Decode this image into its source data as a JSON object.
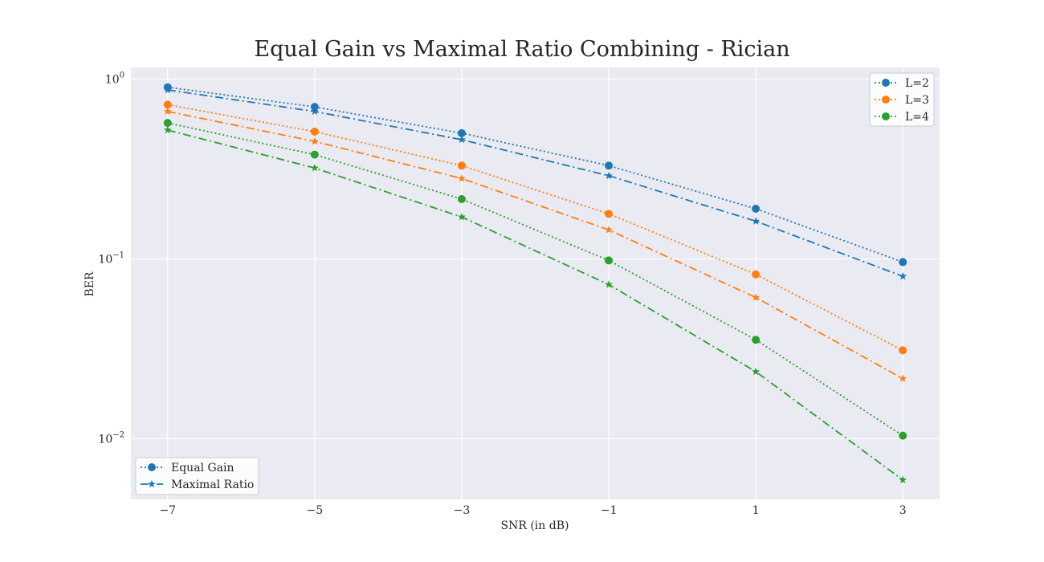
{
  "chart_data": {
    "type": "line",
    "title": "Equal Gain vs Maximal Ratio Combining - Rician",
    "xlabel": "SNR (in dB)",
    "ylabel": "BER",
    "yscale": "log",
    "xlim": [
      -7.5,
      3.5
    ],
    "ylim": [
      0.0046,
      1.16
    ],
    "grid": true,
    "x": [
      -7,
      -5,
      -3,
      -1,
      1,
      3
    ],
    "x_tick_labels": [
      "−7",
      "−5",
      "−3",
      "−1",
      "1",
      "3"
    ],
    "y_ticks": [
      {
        "value": 1,
        "base": "10",
        "exp": "0"
      },
      {
        "value": 0.1,
        "base": "10",
        "exp": "−1"
      },
      {
        "value": 0.01,
        "base": "10",
        "exp": "−2"
      }
    ],
    "colors": {
      "L=2": "#1f77b4",
      "L=3": "#ff7f0e",
      "L=4": "#2ca02c"
    },
    "series": [
      {
        "L": "L=2",
        "method": "Equal Gain",
        "color": "#1f77b4",
        "values": [
          0.9,
          0.7,
          0.5,
          0.33,
          0.19,
          0.096
        ]
      },
      {
        "L": "L=2",
        "method": "Maximal Ratio",
        "color": "#1f77b4",
        "values": [
          0.87,
          0.66,
          0.46,
          0.29,
          0.162,
          0.08
        ]
      },
      {
        "L": "L=3",
        "method": "Equal Gain",
        "color": "#ff7f0e",
        "values": [
          0.72,
          0.51,
          0.33,
          0.178,
          0.082,
          0.031
        ]
      },
      {
        "L": "L=3",
        "method": "Maximal Ratio",
        "color": "#ff7f0e",
        "values": [
          0.66,
          0.45,
          0.28,
          0.145,
          0.061,
          0.0216
        ]
      },
      {
        "L": "L=4",
        "method": "Equal Gain",
        "color": "#2ca02c",
        "values": [
          0.57,
          0.38,
          0.215,
          0.098,
          0.0355,
          0.0104
        ]
      },
      {
        "L": "L=4",
        "method": "Maximal Ratio",
        "color": "#2ca02c",
        "values": [
          0.52,
          0.32,
          0.171,
          0.072,
          0.0236,
          0.0059
        ]
      }
    ],
    "legend_L": {
      "placement": "top-right",
      "entries": [
        "L=2",
        "L=3",
        "L=4"
      ]
    },
    "legend_method": {
      "placement": "bottom-left",
      "entries": [
        {
          "label": "Equal Gain",
          "linestyle": "dotted",
          "marker": "circle"
        },
        {
          "label": "Maximal Ratio",
          "linestyle": "dashdot",
          "marker": "star"
        }
      ]
    }
  }
}
